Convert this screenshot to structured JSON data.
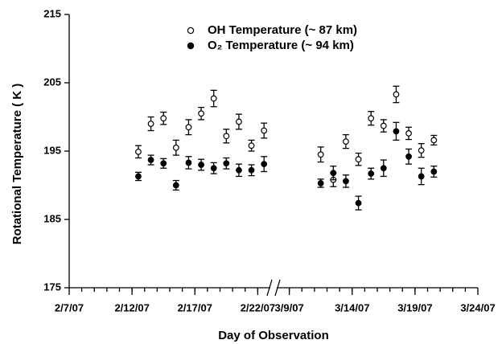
{
  "chart_data": {
    "type": "scatter",
    "x_label": "Day of Observation",
    "y_label": "Rotational Temperature ( K )",
    "x": [
      "2/12/07",
      "2/13/07",
      "2/14/07",
      "2/15/07",
      "2/16/07",
      "2/17/07",
      "2/18/07",
      "2/19/07",
      "2/20/07",
      "2/21/07",
      "2/22/07",
      "3/11/07",
      "3/12/07",
      "3/13/07",
      "3/14/07",
      "3/15/07",
      "3/16/07",
      "3/17/07",
      "3/18/07",
      "3/19/07",
      "3/20/07"
    ],
    "xlim": [
      [
        "2/7/07",
        "2/23/07"
      ],
      [
        "3/8/07",
        "3/24/07"
      ]
    ],
    "xticks": [
      "2/7/07",
      "2/12/07",
      "2/17/07",
      "2/22/07",
      "3/9/07",
      "3/14/07",
      "3/19/07",
      "3/24/07"
    ],
    "ylim": [
      175,
      215
    ],
    "yticks": [
      175,
      185,
      195,
      205,
      215
    ],
    "series": [
      {
        "name": "OH Temperature (~ 87 km)",
        "color": "#000000",
        "marker": "open",
        "values": [
          194.9,
          199.0,
          199.8,
          195.5,
          198.5,
          200.5,
          202.7,
          197.2,
          199.3,
          195.8,
          198.0,
          194.5,
          190.8,
          196.4,
          193.8,
          199.8,
          198.7,
          203.3,
          197.6,
          195.1,
          196.6
        ],
        "errors": [
          0.9,
          1.0,
          0.9,
          1.1,
          1.1,
          0.9,
          1.2,
          1.0,
          1.1,
          0.8,
          1.1,
          1.1,
          1.0,
          1.0,
          0.9,
          1.0,
          0.9,
          1.2,
          0.9,
          1.0,
          0.7
        ]
      },
      {
        "name": "O₂  Temperature (~ 94 km)",
        "color": "#000000",
        "marker": "filled",
        "values": [
          191.3,
          193.7,
          193.2,
          190.0,
          193.3,
          193.0,
          192.5,
          193.2,
          192.2,
          192.2,
          193.1,
          190.3,
          191.8,
          190.6,
          187.4,
          191.7,
          192.5,
          197.9,
          194.2,
          191.3,
          192.0
        ],
        "errors": [
          0.6,
          0.7,
          0.7,
          0.7,
          0.9,
          0.8,
          0.8,
          0.8,
          0.9,
          0.8,
          1.1,
          0.6,
          1.0,
          0.9,
          1.0,
          0.8,
          1.2,
          1.3,
          1.1,
          1.2,
          0.8
        ]
      }
    ]
  }
}
